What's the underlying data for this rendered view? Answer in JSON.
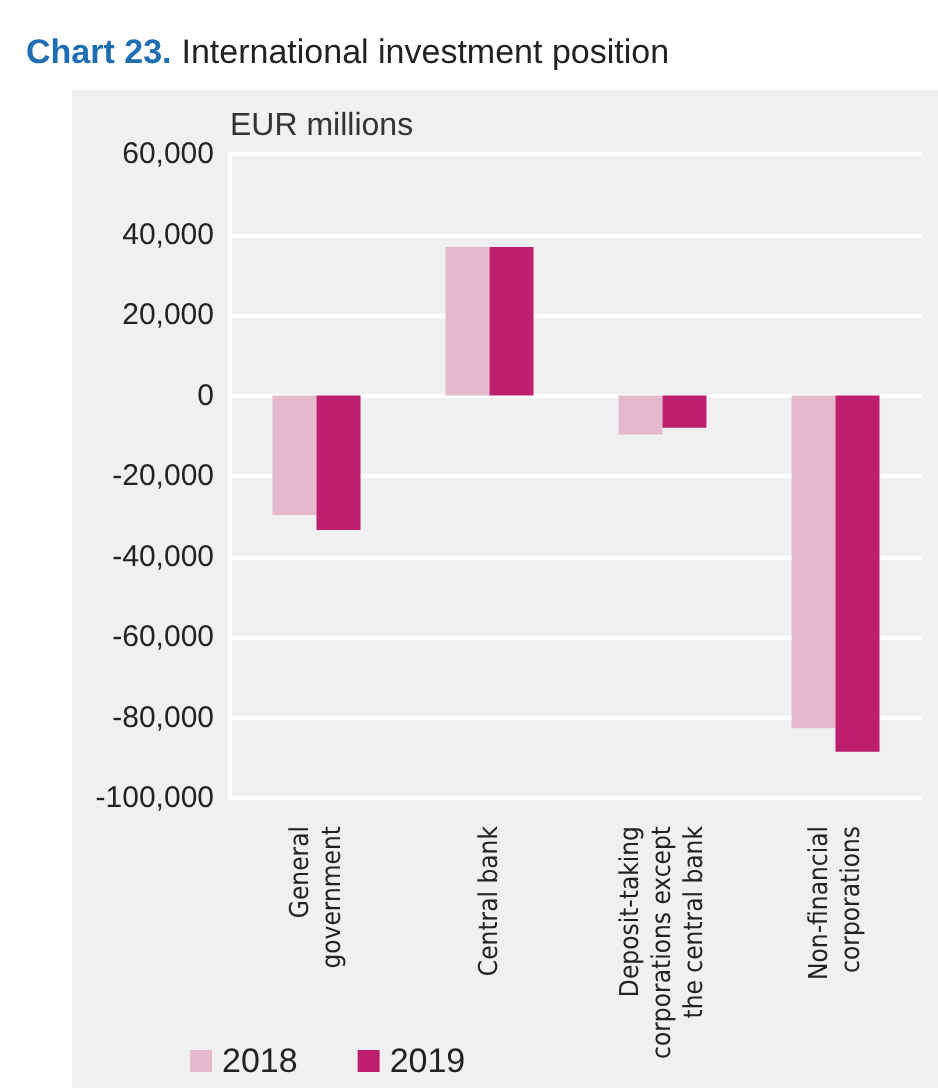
{
  "chart_data": {
    "type": "bar",
    "title": "Chart 23. International investment position",
    "ylabel": "EUR millions",
    "categories": [
      "General\ngovernment",
      "Central bank",
      "Deposit-taking\ncorporations except\nthe central bank",
      "Non-financial\ncorporations"
    ],
    "series": [
      {
        "name": "2018",
        "color": "#e5b9cc",
        "values": [
          -29700,
          36900,
          -9700,
          -82700
        ]
      },
      {
        "name": "2019",
        "color": "#be1e6e",
        "values": [
          -33400,
          36900,
          -8000,
          -88500
        ]
      }
    ],
    "ylim": [
      -100000,
      60000
    ],
    "yticks": [
      {
        "value": -100000,
        "label": "-100,000"
      },
      {
        "value": -80000,
        "label": "-80,000"
      },
      {
        "value": -60000,
        "label": "-60,000"
      },
      {
        "value": -40000,
        "label": "-40,000"
      },
      {
        "value": -20000,
        "label": "-20,000"
      },
      0,
      {
        "value": 20000,
        "label": "20,000"
      },
      {
        "value": 40000,
        "label": "40,000"
      },
      {
        "value": 60000,
        "label": "60,000"
      }
    ],
    "grid": "y",
    "legend": "bottom left"
  }
}
